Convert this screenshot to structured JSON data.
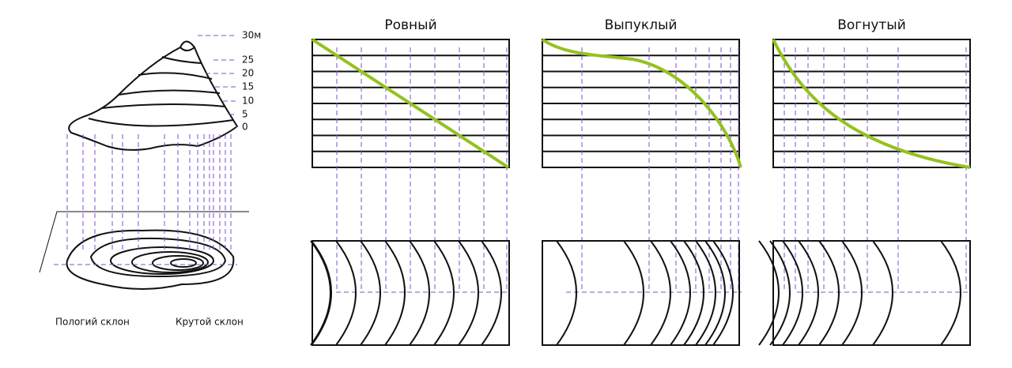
{
  "levels": [
    "30м",
    "25",
    "20",
    "15",
    "10",
    "5",
    "0"
  ],
  "captions": {
    "gentle": "Пологий склон",
    "steep": "Крутой склон"
  },
  "panels": [
    {
      "title": "Ровный"
    },
    {
      "title": "Выпуклый"
    },
    {
      "title": "Вогнутый"
    }
  ]
}
